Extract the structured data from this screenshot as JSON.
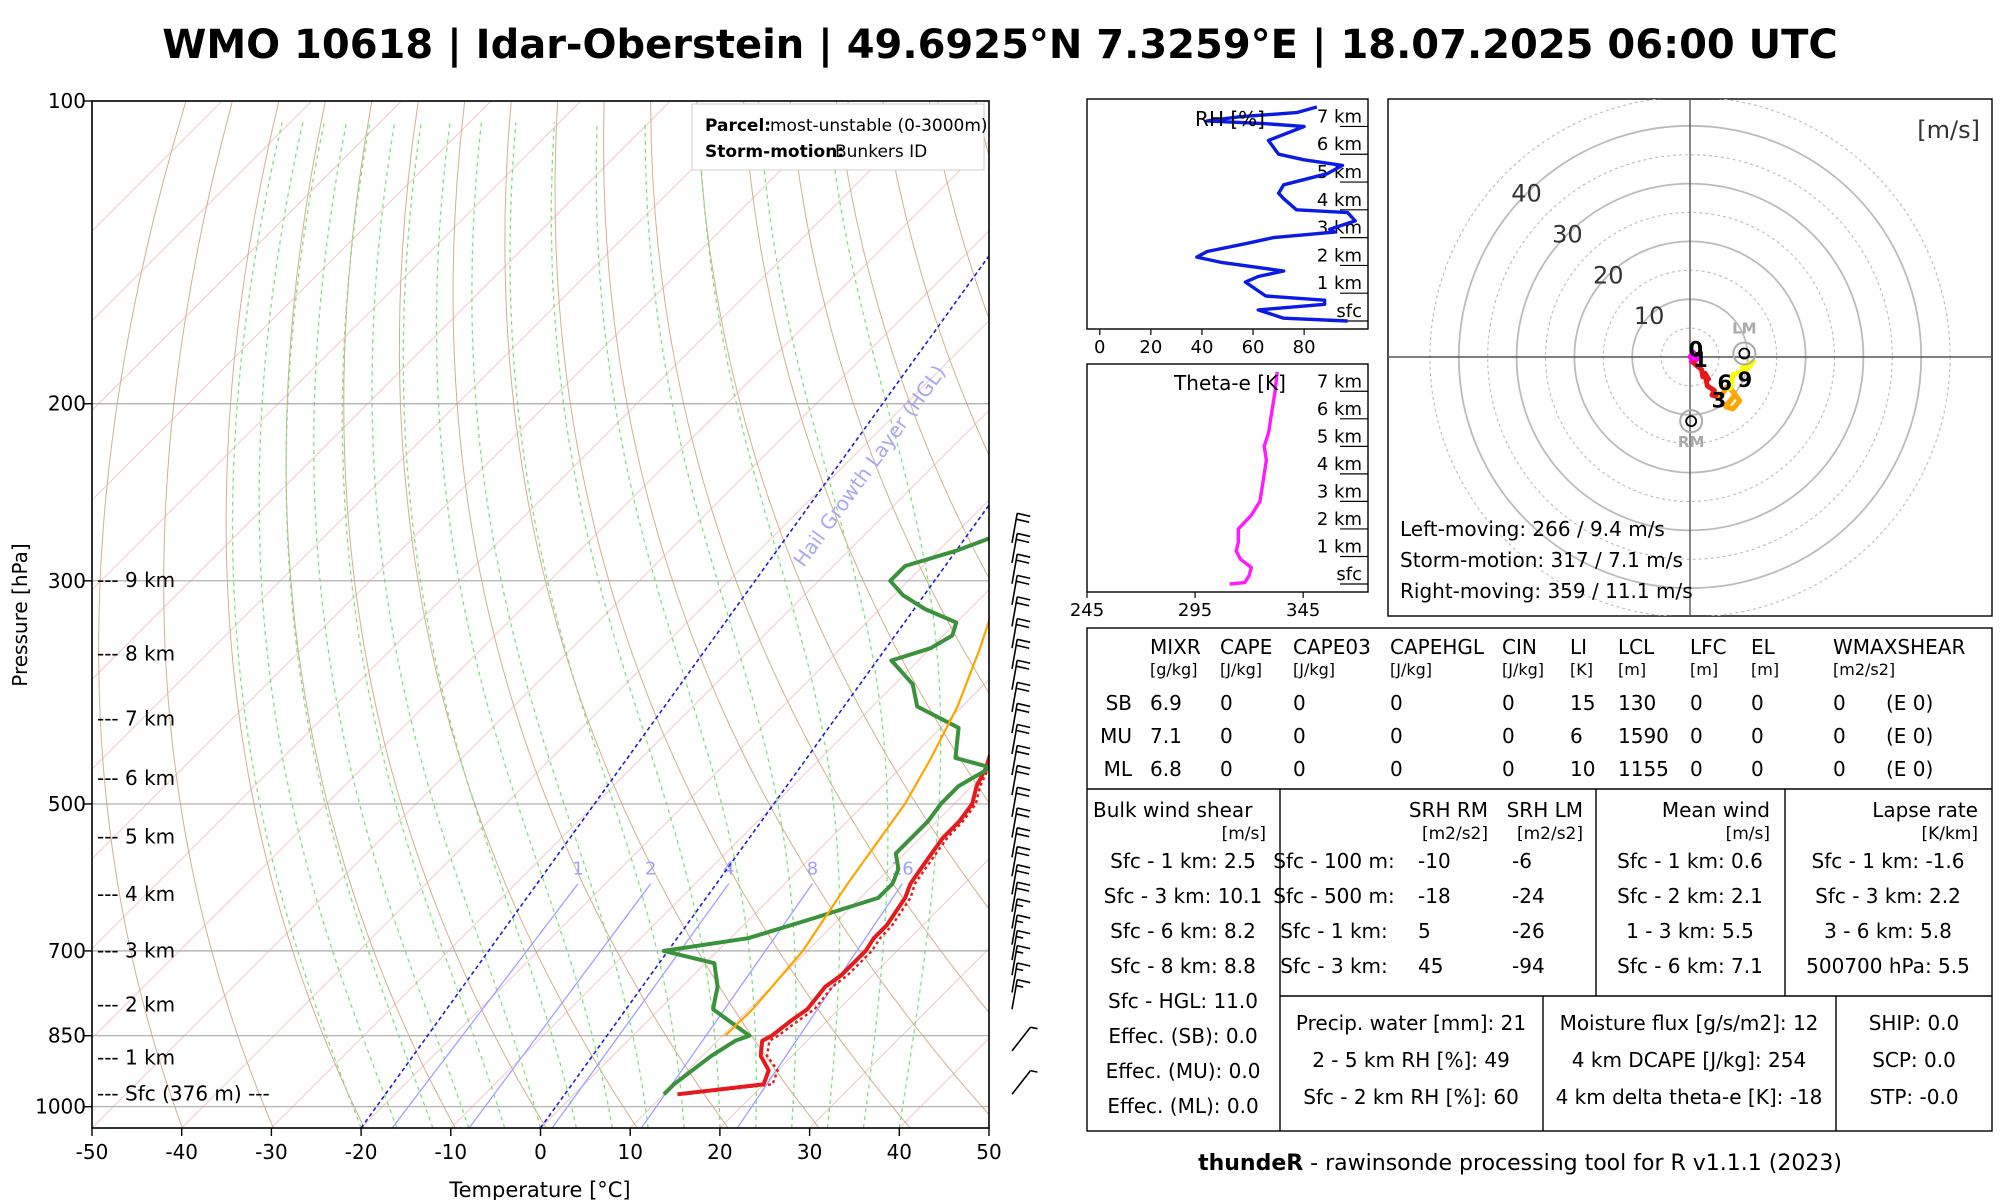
{
  "title": "WMO 10618 | Idar-Oberstein | 49.6925°N 7.3259°E | 18.07.2025 06:00 UTC",
  "footer": {
    "bold": "thundeR",
    "rest": " - rawinsonde processing tool for R v1.1.1 (2023)"
  },
  "skewt": {
    "ylabel": "Pressure [hPa]",
    "xlabel": "Temperature [°C]",
    "pressure_ticks": [
      100,
      200,
      300,
      500,
      700,
      850,
      1000
    ],
    "temp_ticks": [
      -50,
      -40,
      -30,
      -20,
      -10,
      0,
      10,
      20,
      30,
      40,
      50
    ],
    "xlim": [
      -50,
      50
    ],
    "plim": [
      100,
      1050
    ],
    "legend": {
      "parcel_label": "Parcel:",
      "parcel_value": "most-unstable (0-3000m)",
      "storm_label": "Storm-motion:",
      "storm_value": "Bunkers ID"
    },
    "height_labels": [
      {
        "p": 300,
        "label": "--- 9 km"
      },
      {
        "p": 355,
        "label": "--- 8 km"
      },
      {
        "p": 412,
        "label": "--- 7 km"
      },
      {
        "p": 472,
        "label": "--- 6 km"
      },
      {
        "p": 540,
        "label": "--- 5 km"
      },
      {
        "p": 616,
        "label": "--- 4 km"
      },
      {
        "p": 701,
        "label": "--- 3 km"
      },
      {
        "p": 793,
        "label": "--- 2 km"
      },
      {
        "p": 896,
        "label": "--- 1 km"
      },
      {
        "p": 972,
        "label": "--- Sfc (376 m) ---"
      }
    ],
    "mixing_ratio_labels": [
      "1",
      "2",
      "4",
      "8",
      "16"
    ],
    "hgl_label": "Hail Growth Layer (HGL)",
    "colors": {
      "temperature": "#e41a1c",
      "dewpoint": "#3a923a",
      "parcel": "#ffa500",
      "hgl": "#1f1fc8",
      "mixing": "#a0a0ff"
    },
    "temperature": [
      [
        972,
        11.5
      ],
      [
        950,
        20
      ],
      [
        920,
        19
      ],
      [
        890,
        16.5
      ],
      [
        860,
        15
      ],
      [
        850,
        15.5
      ],
      [
        820,
        16
      ],
      [
        800,
        16.5
      ],
      [
        760,
        16
      ],
      [
        740,
        16.5
      ],
      [
        700,
        16.5
      ],
      [
        680,
        16
      ],
      [
        660,
        16
      ],
      [
        640,
        15.5
      ],
      [
        620,
        15
      ],
      [
        600,
        14
      ],
      [
        580,
        13.5
      ],
      [
        560,
        13
      ],
      [
        540,
        12.5
      ],
      [
        520,
        12.5
      ],
      [
        500,
        12
      ],
      [
        480,
        10.5
      ],
      [
        460,
        9.5
      ],
      [
        440,
        8
      ],
      [
        420,
        6.5
      ],
      [
        400,
        5.5
      ],
      [
        380,
        4
      ],
      [
        360,
        2.5
      ],
      [
        350,
        1
      ],
      [
        340,
        -1
      ],
      [
        330,
        -2
      ],
      [
        320,
        -3
      ],
      [
        310,
        -4
      ],
      [
        300,
        -5
      ],
      [
        290,
        -6
      ],
      [
        280,
        -7.5
      ],
      [
        270,
        -9
      ]
    ],
    "virtual_temperature": [
      [
        972,
        12.3
      ],
      [
        950,
        21
      ],
      [
        920,
        20
      ],
      [
        890,
        17.2
      ],
      [
        860,
        15.8
      ],
      [
        850,
        16.2
      ],
      [
        820,
        16.8
      ],
      [
        800,
        17.3
      ],
      [
        760,
        16.8
      ],
      [
        740,
        17.2
      ],
      [
        700,
        17.2
      ],
      [
        680,
        16.7
      ],
      [
        660,
        16.6
      ],
      [
        640,
        16.1
      ],
      [
        620,
        15.6
      ],
      [
        600,
        14.5
      ],
      [
        580,
        14
      ],
      [
        560,
        13.5
      ],
      [
        540,
        13
      ],
      [
        520,
        12.9
      ],
      [
        500,
        12.4
      ],
      [
        480,
        10.9
      ],
      [
        460,
        9.8
      ],
      [
        440,
        8.3
      ],
      [
        420,
        6.7
      ],
      [
        400,
        5.7
      ]
    ],
    "dewpoint": [
      [
        972,
        10
      ],
      [
        950,
        10
      ],
      [
        890,
        11
      ],
      [
        860,
        12
      ],
      [
        850,
        13
      ],
      [
        800,
        6
      ],
      [
        780,
        5
      ],
      [
        760,
        4
      ],
      [
        720,
        1
      ],
      [
        700,
        -6
      ],
      [
        680,
        2
      ],
      [
        650,
        7
      ],
      [
        620,
        12
      ],
      [
        600,
        12
      ],
      [
        580,
        11
      ],
      [
        560,
        9
      ],
      [
        540,
        9
      ],
      [
        520,
        9
      ],
      [
        500,
        8.5
      ],
      [
        480,
        8.5
      ],
      [
        460,
        10
      ],
      [
        450,
        5
      ],
      [
        420,
        2
      ],
      [
        400,
        -5
      ],
      [
        380,
        -8
      ],
      [
        360,
        -13
      ],
      [
        350,
        -10
      ],
      [
        340,
        -9
      ],
      [
        330,
        -10
      ],
      [
        320,
        -15
      ],
      [
        310,
        -19
      ],
      [
        300,
        -22
      ],
      [
        290,
        -22
      ],
      [
        280,
        -18
      ],
      [
        270,
        -15
      ]
    ],
    "parcel": [
      [
        850,
        10.3
      ],
      [
        800,
        10.4
      ],
      [
        700,
        9.5
      ],
      [
        600,
        7
      ],
      [
        500,
        4.5
      ],
      [
        450,
        2.3
      ],
      [
        400,
        -0.5
      ],
      [
        350,
        -4.5
      ],
      [
        300,
        -9.5
      ],
      [
        280,
        -12.8
      ],
      [
        270,
        -14.5
      ]
    ],
    "hgl_line1": [
      [
        1050,
        -20
      ],
      [
        120,
        60
      ]
    ],
    "hgl_line2": [
      [
        1050,
        0
      ],
      [
        120,
        80
      ]
    ],
    "mixing_ratio_values_gkg": [
      1,
      2,
      4,
      8,
      16
    ],
    "wind_barbs": [
      {
        "p": 972,
        "speed": 5
      },
      {
        "p": 880,
        "speed": 5
      },
      {
        "p": 800,
        "speed": 15
      },
      {
        "p": 770,
        "speed": 15
      },
      {
        "p": 740,
        "speed": 15
      },
      {
        "p": 715,
        "speed": 15
      },
      {
        "p": 690,
        "speed": 15
      },
      {
        "p": 665,
        "speed": 15
      },
      {
        "p": 640,
        "speed": 20
      },
      {
        "p": 615,
        "speed": 20
      },
      {
        "p": 590,
        "speed": 20
      },
      {
        "p": 565,
        "speed": 20
      },
      {
        "p": 540,
        "speed": 20
      },
      {
        "p": 515,
        "speed": 20
      },
      {
        "p": 490,
        "speed": 20
      },
      {
        "p": 468,
        "speed": 20
      },
      {
        "p": 446,
        "speed": 20
      },
      {
        "p": 425,
        "speed": 20
      },
      {
        "p": 405,
        "speed": 20
      },
      {
        "p": 385,
        "speed": 20
      },
      {
        "p": 367,
        "speed": 20
      },
      {
        "p": 350,
        "speed": 20
      },
      {
        "p": 333,
        "speed": 20
      },
      {
        "p": 317,
        "speed": 20
      },
      {
        "p": 302,
        "speed": 20
      },
      {
        "p": 288,
        "speed": 20
      },
      {
        "p": 275,
        "speed": 20
      }
    ]
  },
  "rh_panel": {
    "label": "RH [%]",
    "xticks": [
      "0",
      "20",
      "40",
      "60",
      "80"
    ],
    "height_labels": [
      "7 km",
      "6 km",
      "5 km",
      "4 km",
      "3 km",
      "2 km",
      "1 km",
      "sfc"
    ],
    "xlim": [
      0,
      100
    ],
    "zlim": [
      0,
      7.7
    ],
    "profile": [
      [
        0,
        97
      ],
      [
        0.1,
        72
      ],
      [
        0.4,
        62
      ],
      [
        0.6,
        88
      ],
      [
        0.75,
        88
      ],
      [
        0.9,
        65
      ],
      [
        1.4,
        57
      ],
      [
        1.6,
        62
      ],
      [
        1.8,
        72
      ],
      [
        2.1,
        48
      ],
      [
        2.3,
        38
      ],
      [
        2.5,
        42
      ],
      [
        2.8,
        58
      ],
      [
        3.0,
        68
      ],
      [
        3.2,
        92
      ],
      [
        3.3,
        90
      ],
      [
        3.6,
        100
      ],
      [
        3.9,
        97
      ],
      [
        4.0,
        77
      ],
      [
        4.4,
        72
      ],
      [
        4.6,
        70
      ],
      [
        4.9,
        72
      ],
      [
        5.3,
        89
      ],
      [
        5.6,
        95
      ],
      [
        5.8,
        80
      ],
      [
        6.0,
        70
      ],
      [
        6.5,
        66
      ],
      [
        7.0,
        80
      ],
      [
        7.1,
        65
      ],
      [
        7.2,
        42
      ],
      [
        7.35,
        55
      ],
      [
        7.5,
        77
      ],
      [
        7.7,
        85
      ]
    ]
  },
  "theta_panel": {
    "label": "Theta-e [K]",
    "xticks": [
      "245",
      "295",
      "345"
    ],
    "height_labels": [
      "7 km",
      "6 km",
      "5 km",
      "4 km",
      "3 km",
      "2 km",
      "1 km",
      "sfc"
    ],
    "xlim": [
      245,
      375
    ],
    "zlim": [
      0,
      7.7
    ],
    "profile": [
      [
        0,
        311
      ],
      [
        0.05,
        318
      ],
      [
        0.3,
        320
      ],
      [
        0.6,
        321
      ],
      [
        0.9,
        316
      ],
      [
        1.2,
        314
      ],
      [
        1.5,
        315
      ],
      [
        2.0,
        315
      ],
      [
        2.5,
        321
      ],
      [
        3.0,
        325
      ],
      [
        3.5,
        326
      ],
      [
        4.0,
        327
      ],
      [
        4.5,
        328
      ],
      [
        5.0,
        327
      ],
      [
        5.5,
        329
      ],
      [
        6.0,
        330
      ],
      [
        6.5,
        331
      ],
      [
        7.0,
        332
      ],
      [
        7.7,
        333
      ]
    ]
  },
  "hodograph": {
    "units_label": "[m/s]",
    "ring_labels": [
      "10",
      "20",
      "30",
      "40"
    ],
    "ring_values": [
      10,
      20,
      30,
      40
    ],
    "lm_label": "LM",
    "rm_label": "RM",
    "lm": [
      9.4,
      0.6
    ],
    "rm": [
      0.2,
      -11.1
    ],
    "height_markers": [
      {
        "label": "0",
        "u": 1.0,
        "v": 1.3
      },
      {
        "label": "1",
        "u": 1.8,
        "v": -0.5
      },
      {
        "label": "3",
        "u": 5.0,
        "v": -7.5
      },
      {
        "label": "6",
        "u": 6.0,
        "v": -4.5
      },
      {
        "label": "9",
        "u": 9.5,
        "v": -4.0
      }
    ],
    "segments": [
      {
        "color": "#ff00ff",
        "points": [
          [
            0,
            0
          ],
          [
            0.6,
            0.8
          ],
          [
            1.2,
            -0.4
          ],
          [
            0.2,
            -0.8
          ]
        ]
      },
      {
        "color": "#e41a1c",
        "points": [
          [
            0.6,
            -1.0
          ],
          [
            2.0,
            -2.2
          ],
          [
            2.2,
            -3.4
          ],
          [
            3.2,
            -3.8
          ],
          [
            2.6,
            -2.8
          ],
          [
            3.0,
            -5.0
          ],
          [
            4.2,
            -5.8
          ],
          [
            3.8,
            -6.6
          ],
          [
            5.2,
            -7.0
          ]
        ]
      },
      {
        "color": "#ffa500",
        "points": [
          [
            5.2,
            -7.0
          ],
          [
            6.5,
            -5.0
          ],
          [
            7.8,
            -6.5
          ],
          [
            6.2,
            -8.6
          ],
          [
            7.4,
            -9.0
          ],
          [
            8.6,
            -7.6
          ],
          [
            7.0,
            -5.4
          ]
        ]
      },
      {
        "color": "#ffff00",
        "points": [
          [
            7.0,
            -5.4
          ],
          [
            7.5,
            -3.0
          ],
          [
            9.5,
            -2.5
          ],
          [
            11.0,
            -0.8
          ],
          [
            9.0,
            -1.8
          ]
        ]
      }
    ],
    "stats": [
      "Left-moving: 266 / 9.4 m/s",
      "Storm-motion: 317 / 7.1 m/s",
      "Right-moving: 359 / 11.1 m/s"
    ]
  },
  "params_table": {
    "headers": [
      {
        "name": "MIXR",
        "unit": "[g/kg]"
      },
      {
        "name": "CAPE",
        "unit": "[J/kg]"
      },
      {
        "name": "CAPE03",
        "unit": "[J/kg]"
      },
      {
        "name": "CAPEHGL",
        "unit": "[J/kg]"
      },
      {
        "name": "CIN",
        "unit": "[J/kg]"
      },
      {
        "name": "LI",
        "unit": "[K]"
      },
      {
        "name": "LCL",
        "unit": "[m]"
      },
      {
        "name": "LFC",
        "unit": "[m]"
      },
      {
        "name": "EL",
        "unit": "[m]"
      },
      {
        "name": "WMAXSHEAR",
        "unit": "[m2/s2]"
      }
    ],
    "rows": [
      {
        "label": "SB",
        "values": [
          "6.9",
          "0",
          "0",
          "0",
          "0",
          "15",
          "130",
          "0",
          "0",
          "0",
          "(E 0)"
        ]
      },
      {
        "label": "MU",
        "values": [
          "7.1",
          "0",
          "0",
          "0",
          "0",
          "6",
          "1590",
          "0",
          "0",
          "0",
          "(E 0)"
        ]
      },
      {
        "label": "ML",
        "values": [
          "6.8",
          "0",
          "0",
          "0",
          "0",
          "10",
          "1155",
          "0",
          "0",
          "0",
          "(E 0)"
        ]
      }
    ]
  },
  "bulk_shear": {
    "title": "Bulk wind shear",
    "unit": "[m/s]",
    "rows": [
      "Sfc - 1 km: 2.5",
      "Sfc - 3 km: 10.1",
      "Sfc - 6 km: 8.2",
      "Sfc - 8 km: 8.8",
      "Sfc - HGL: 11.0",
      "Effec. (SB): 0.0",
      "Effec. (MU): 0.0",
      "Effec. (ML): 0.0"
    ]
  },
  "srh": {
    "title_rm": "SRH RM",
    "unit_rm": "[m2/s2]",
    "title_lm": "SRH LM",
    "unit_lm": "[m2/s2]",
    "rows": [
      {
        "label": "Sfc - 100 m:",
        "rm": "-10",
        "lm": "-6"
      },
      {
        "label": "Sfc - 500 m:",
        "rm": "-18",
        "lm": "-24"
      },
      {
        "label": "Sfc - 1 km:",
        "rm": "5",
        "lm": "-26"
      },
      {
        "label": "Sfc - 3 km:",
        "rm": "45",
        "lm": "-94"
      }
    ]
  },
  "mean_wind": {
    "title": "Mean wind",
    "unit": "[m/s]",
    "rows": [
      "Sfc - 1 km: 0.6",
      "Sfc - 2 km: 2.1",
      "1 - 3 km: 5.5",
      "Sfc - 6 km: 7.1"
    ]
  },
  "lapse_rate": {
    "title": "Lapse rate",
    "unit": "[K/km]",
    "rows": [
      "Sfc - 1 km: -1.6",
      "Sfc - 3 km: 2.2",
      "3 - 6 km: 5.8",
      "500700 hPa: 5.5"
    ]
  },
  "moisture": {
    "rows": [
      "Precip. water [mm]: 21",
      "2 - 5 km RH [%]: 49",
      "Sfc - 2 km RH [%]: 60"
    ]
  },
  "flux": {
    "rows": [
      "Moisture flux [g/s/m2]: 12",
      "4 km DCAPE [J/kg]: 254",
      "4 km delta theta-e [K]: -18"
    ]
  },
  "indices": {
    "rows": [
      "SHIP: 0.0",
      "SCP: 0.0",
      "STP: -0.0"
    ]
  },
  "chart_data": [
    {
      "type": "line",
      "title": "Skew-T log-P diagram",
      "xlabel": "Temperature [°C]",
      "ylabel": "Pressure [hPa]",
      "xlim": [
        -50,
        50
      ],
      "ylim": [
        1050,
        100
      ],
      "series": [
        {
          "name": "Temperature",
          "ref": "skewt.temperature"
        },
        {
          "name": "Virtual temperature",
          "ref": "skewt.virtual_temperature"
        },
        {
          "name": "Dewpoint",
          "ref": "skewt.dewpoint"
        },
        {
          "name": "Parcel (most-unstable)",
          "ref": "skewt.parcel"
        }
      ]
    },
    {
      "type": "line",
      "title": "RH [%]",
      "xlabel": "RH [%]",
      "ylabel": "Height",
      "xlim": [
        0,
        100
      ],
      "series": [
        {
          "name": "RH",
          "ref": "rh_panel.profile"
        }
      ]
    },
    {
      "type": "line",
      "title": "Theta-e [K]",
      "xlabel": "Theta-e [K]",
      "ylabel": "Height",
      "xlim": [
        245,
        375
      ],
      "series": [
        {
          "name": "Theta-e",
          "ref": "theta_panel.profile"
        }
      ]
    },
    {
      "type": "line",
      "title": "Hodograph [m/s]",
      "xlim": [
        -45,
        45
      ],
      "ylim": [
        -45,
        45
      ],
      "series": [
        {
          "name": "Hodograph",
          "ref": "hodograph.segments"
        }
      ]
    }
  ]
}
